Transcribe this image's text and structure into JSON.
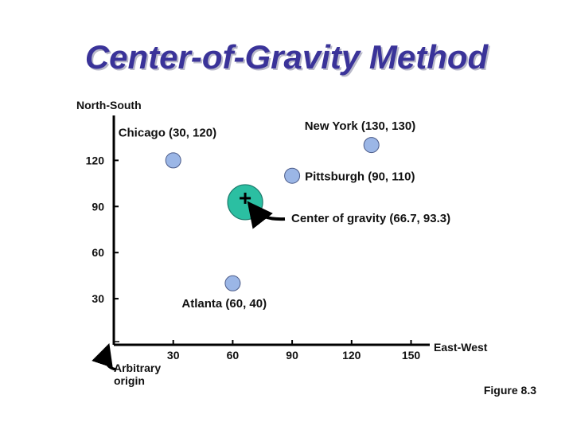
{
  "title": "Center-of-Gravity Method",
  "figure_label": "Figure 8.3",
  "origin_note_line1": "Arbitrary",
  "origin_note_line2": "origin",
  "colors": {
    "title": "#3a3399",
    "city": "#9bb6e6",
    "center": "#2bbfa2"
  },
  "chart_data": {
    "type": "scatter",
    "xlabel": "East-West",
    "ylabel": "North-South",
    "xticks": [
      30,
      60,
      90,
      120,
      150
    ],
    "yticks": [
      30,
      60,
      90,
      120
    ],
    "points": [
      {
        "label": "Chicago (30, 120)",
        "x": 30,
        "y": 120
      },
      {
        "label": "New York (130, 130)",
        "x": 130,
        "y": 130
      },
      {
        "label": "Pittsburgh (90, 110)",
        "x": 90,
        "y": 110
      },
      {
        "label": "Atlanta (60, 40)",
        "x": 60,
        "y": 40
      }
    ],
    "center": {
      "label": "Center of gravity (66.7, 93.3)",
      "x": 66.7,
      "y": 93.3
    }
  }
}
